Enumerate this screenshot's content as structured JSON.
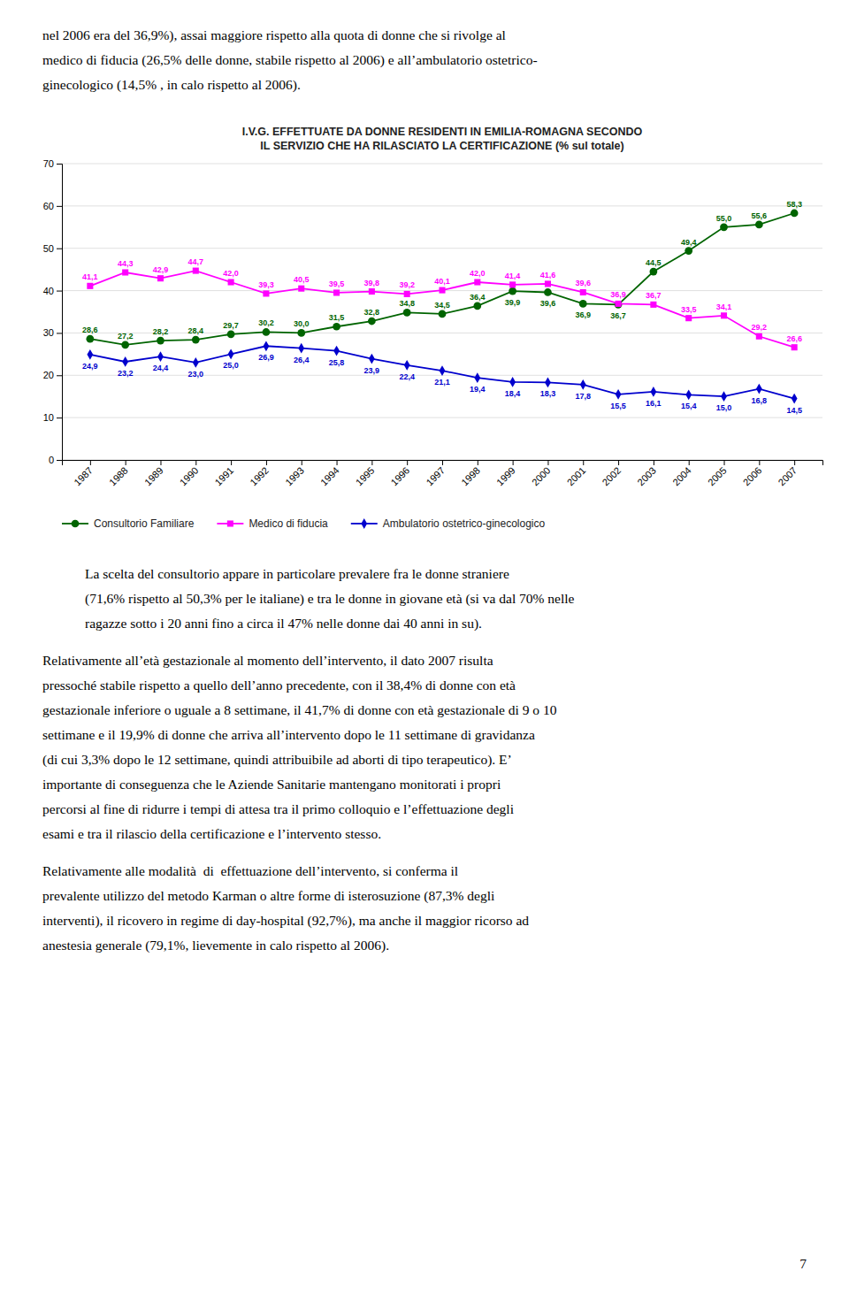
{
  "text_above": [
    "nel 2006 era del 36,9%), assai maggiore rispetto alla quota di donne che si rivolge al",
    "medico di fiducia (26,5% delle donne, stabile rispetto al 2006) e all’ambulatorio ostetrico-",
    "ginecologico (14,5% , in calo rispetto al 2006)."
  ],
  "chart_data": {
    "type": "line",
    "title": "I.V.G. EFFETTUATE DA DONNE RESIDENTI IN EMILIA-ROMAGNA SECONDO\nIL SERVIZIO CHE HA RILASCIATO LA CERTIFICAZIONE (% sul totale)",
    "x": [
      1987,
      1988,
      1989,
      1990,
      1991,
      1992,
      1993,
      1994,
      1995,
      1996,
      1997,
      1998,
      1999,
      2000,
      2001,
      2002,
      2003,
      2004,
      2005,
      2006,
      2007
    ],
    "xlim": [
      1986.2,
      2007.8
    ],
    "xticks": [
      1987,
      1988,
      1989,
      1990,
      1991,
      1992,
      1993,
      1994,
      1995,
      1996,
      1997,
      1998,
      1999,
      2000,
      2001,
      2002,
      2003,
      2004,
      2005,
      2006,
      2007
    ],
    "ylim": [
      0,
      70
    ],
    "yticks": [
      0,
      10,
      20,
      30,
      40,
      50,
      60,
      70
    ],
    "grid": true,
    "legend": "bottom",
    "data_labels": true,
    "series": [
      {
        "name": "Consultorio Familiare",
        "color": "#006400",
        "marker": "circle",
        "values": [
          28.6,
          27.2,
          28.2,
          28.4,
          29.7,
          30.2,
          30.0,
          31.5,
          32.8,
          34.8,
          34.5,
          36.4,
          39.9,
          39.6,
          36.9,
          36.7,
          44.5,
          49.4,
          55.0,
          55.6,
          58.3
        ],
        "value_labels": [
          "28,6",
          "27,2",
          "28,2",
          "28,4",
          "29,7",
          "30,2",
          "30,0",
          "31,5",
          "32,8",
          "34,8",
          "34,5",
          "36,4",
          "39,9",
          "39,6",
          "36,9",
          "36,7",
          "44,5",
          "49,4",
          "55,0",
          "55,6",
          "58,3"
        ]
      },
      {
        "name": "Medico di fiducia",
        "color": "#FF00FF",
        "marker": "square",
        "values": [
          41.1,
          44.3,
          42.9,
          44.7,
          42.0,
          39.3,
          40.5,
          39.5,
          39.8,
          39.2,
          40.1,
          42.0,
          41.4,
          41.6,
          39.6,
          36.9,
          36.7,
          33.5,
          34.1,
          29.2,
          26.6
        ],
        "value_labels": [
          "41,1",
          "44,3",
          "42,9",
          "44,7",
          "42,0",
          "39,3",
          "40,5",
          "39,5",
          "39,8",
          "39,2",
          "40,1",
          "42,0",
          "41,4",
          "41,6",
          "39,6",
          "36,9",
          "36,7",
          "33,5",
          "34,1",
          "29,2",
          "26,6"
        ]
      },
      {
        "name": "Ambulatorio ostetrico-ginecologico",
        "color": "#0000CD",
        "marker": "diamond",
        "values": [
          24.9,
          23.2,
          24.4,
          23.0,
          25.0,
          26.9,
          26.4,
          25.8,
          23.9,
          22.4,
          21.1,
          19.4,
          18.4,
          18.3,
          17.8,
          15.5,
          16.1,
          15.4,
          15.0,
          16.8,
          14.5
        ],
        "value_labels": [
          "24,9",
          "23,2",
          "24,4",
          "23,0",
          "25,0",
          "26,9",
          "26,4",
          "25,8",
          "23,9",
          "22,4",
          "21,1",
          "19,4",
          "18,4",
          "18,3",
          "17,8",
          "15,5",
          "16,1",
          "15,4",
          "15,0",
          "16,8",
          "14,5"
        ]
      }
    ]
  },
  "paragraphs": [
    [
      "La scelta del consultorio appare in particolare prevalere fra le donne straniere",
      "(71,6% rispetto al 50,3% per le italiane) e tra le donne in giovane età (si va dal 70% nelle",
      "ragazze sotto i 20 anni fino a circa il 47% nelle donne dai 40 anni in su)."
    ],
    [
      "Relativamente all’età gestazionale al momento dell’intervento, il dato 2007 risulta",
      "pressoché stabile rispetto a quello dell’anno precedente, con il 38,4% di donne con età",
      "gestazionale inferiore o uguale a 8 settimane, il 41,7% di donne con età gestazionale di 9 o 10",
      "settimane e il 19,9% di donne che arriva all’intervento dopo le 11 settimane di gravidanza",
      "(di cui 3,3% dopo le 12 settimane, quindi attribuibile ad aborti di tipo terapeutico). E’",
      "importante di conseguenza che le Aziende Sanitarie mantengano monitorati i propri",
      "percorsi al fine di ridurre i tempi di attesa tra il primo colloquio e l’effettuazione degli",
      "esami e tra il rilascio della certificazione e l’intervento stesso."
    ],
    [
      "Relativamente alle modalità  di  effettuazione dell’intervento, si conferma il",
      "prevalente utilizzo del metodo Karman o altre forme di isterosuzione (87,3% degli",
      "interventi), il ricovero in regime di day-hospital (92,7%), ma anche il maggior ricorso ad",
      "anestesia generale (79,1%, lievemente in calo rispetto al 2006)."
    ]
  ],
  "page_number": "7"
}
